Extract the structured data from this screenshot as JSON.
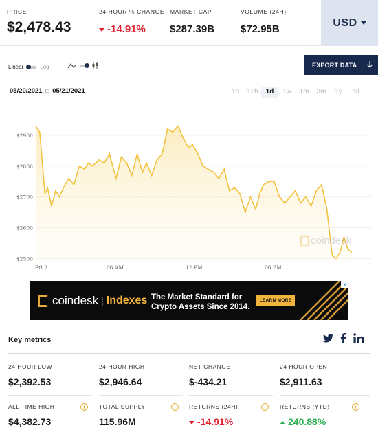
{
  "header": {
    "price": {
      "label": "PRICE",
      "value": "$2,478.43"
    },
    "change": {
      "label": "24 HOUR % CHANGE",
      "value": "-14.91%"
    },
    "market_cap": {
      "label": "MARKET CAP",
      "value": "$287.39B"
    },
    "volume": {
      "label": "VOLUME (24H)",
      "value": "$72.95B"
    },
    "currency": "USD"
  },
  "controls": {
    "linear": "Linear",
    "log": "Log",
    "export": "EXPORT DATA",
    "date_from": "05/20/2021",
    "date_to_sep": "to",
    "date_to": "05/21/2021",
    "ranges": [
      "1h",
      "12h",
      "1d",
      "1w",
      "1m",
      "3m",
      "1y",
      "all"
    ],
    "active_range": "1d"
  },
  "chart_data": {
    "type": "area",
    "y_ticks": [
      "$2900",
      "$2800",
      "$2700",
      "$2600",
      "$2500"
    ],
    "x_ticks": [
      "Fri 21",
      "06 AM",
      "12 PM",
      "06 PM"
    ],
    "ylim": [
      2490,
      2960
    ],
    "xlim": [
      0,
      24
    ],
    "x": [
      0,
      0.3,
      0.7,
      0.9,
      1.2,
      1.5,
      1.8,
      2.1,
      2.5,
      2.9,
      3.3,
      3.7,
      4.0,
      4.3,
      4.8,
      5.2,
      5.6,
      5.9,
      6.1,
      6.5,
      6.9,
      7.3,
      7.7,
      8.1,
      8.4,
      8.8,
      9.2,
      9.6,
      10.0,
      10.4,
      10.8,
      11.2,
      11.6,
      11.9,
      12.3,
      12.7,
      13.1,
      13.5,
      13.9,
      14.3,
      14.7,
      15.1,
      15.5,
      15.9,
      16.3,
      16.7,
      17.0,
      17.3,
      17.7,
      18.1,
      18.5,
      18.9,
      19.3,
      19.7,
      20.1,
      20.5,
      20.9,
      21.3,
      21.7,
      22.1,
      22.5,
      22.8,
      23.1,
      23.4,
      23.7,
      24.0
    ],
    "y": [
      2930,
      2910,
      2710,
      2730,
      2670,
      2720,
      2700,
      2730,
      2760,
      2740,
      2800,
      2790,
      2810,
      2800,
      2820,
      2810,
      2840,
      2790,
      2760,
      2830,
      2810,
      2770,
      2840,
      2780,
      2810,
      2770,
      2820,
      2840,
      2920,
      2910,
      2930,
      2890,
      2860,
      2870,
      2840,
      2800,
      2790,
      2780,
      2760,
      2790,
      2720,
      2730,
      2710,
      2650,
      2700,
      2660,
      2710,
      2740,
      2750,
      2750,
      2700,
      2680,
      2700,
      2720,
      2680,
      2700,
      2670,
      2720,
      2740,
      2660,
      2510,
      2500,
      2520,
      2570,
      2530,
      2520
    ],
    "color": "#f2c23f",
    "watermark": "coindesk"
  },
  "ad": {
    "brand": "coindesk",
    "brand_sub": "Indexes",
    "tagline_1": "The Market Standard for",
    "tagline_2": "Crypto Assets Since 2014.",
    "cta": "LEARN MORE",
    "close": "x"
  },
  "key_metrics": {
    "title": "Key metrics",
    "items": [
      {
        "label": "24 HOUR LOW",
        "value": "$2,392.53"
      },
      {
        "label": "24 HOUR HIGH",
        "value": "$2,946.64"
      },
      {
        "label": "NET CHANGE",
        "value": "$-434.21"
      },
      {
        "label": "24 HOUR OPEN",
        "value": "$2,911.63"
      },
      {
        "label": "ALL TIME HIGH",
        "value": "$4,382.73"
      },
      {
        "label": "TOTAL SUPPLY",
        "value": "115.96M"
      },
      {
        "label": "RETURNS (24H)",
        "value": "-14.91%"
      },
      {
        "label": "RETURNS (YTD)",
        "value": "240.88%"
      }
    ],
    "info_glyph": "i"
  },
  "colors": {
    "accent": "#f2c23f",
    "navy": "#172a4e",
    "negative": "#e0202e",
    "positive": "#2cad52"
  },
  "icons": [
    "chevron-down-icon",
    "line-chart-icon",
    "candlestick-icon",
    "download-icon",
    "twitter-icon",
    "facebook-icon",
    "linkedin-icon",
    "info-icon",
    "close-icon"
  ]
}
